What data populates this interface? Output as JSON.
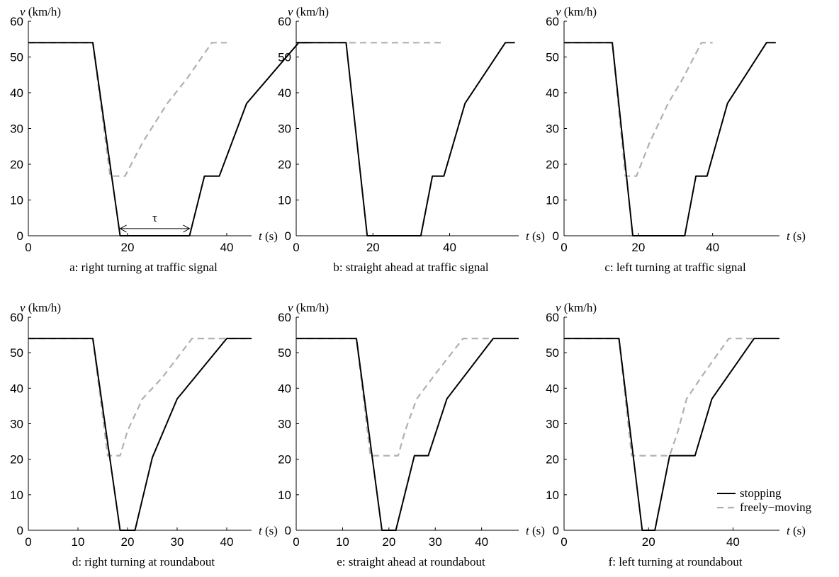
{
  "chart_data": [
    {
      "type": "line",
      "caption": "a: right turning at traffic signal",
      "xlabel_var": "t",
      "xlabel_unit": " (s)",
      "ylabel_var": "v",
      "ylabel_unit": " (km/h)",
      "xlim": [
        0,
        45
      ],
      "ylim": [
        0,
        60
      ],
      "xticks": [
        0,
        20,
        40
      ],
      "yticks": [
        0,
        10,
        20,
        30,
        40,
        50,
        60
      ],
      "series": [
        {
          "name": "stopping",
          "color": "#000000",
          "style": "solid",
          "x": [
            0,
            13,
            18.5,
            32.5,
            35.5,
            38.5,
            44,
            54.5,
            57
          ],
          "y": [
            54,
            54,
            0,
            0,
            16.7,
            16.7,
            37,
            54,
            54
          ]
        },
        {
          "name": "freely-moving",
          "color": "#b0b0b0",
          "style": "dashed",
          "x": [
            0,
            13,
            16.5,
            19.5,
            23,
            28,
            32,
            37,
            40
          ],
          "y": [
            54,
            54,
            16.7,
            16.7,
            26,
            37,
            44,
            54,
            54
          ]
        }
      ],
      "annotation": {
        "label": "τ",
        "x_start": 18.5,
        "x_end": 32.5,
        "y": 2
      }
    },
    {
      "type": "line",
      "caption": "b: straight ahead at traffic signal",
      "xlabel_var": "t",
      "xlabel_unit": " (s)",
      "ylabel_var": "v",
      "ylabel_unit": " (km/h)",
      "xlim": [
        0,
        58
      ],
      "ylim": [
        0,
        60
      ],
      "xticks": [
        0,
        20,
        40
      ],
      "yticks": [
        0,
        10,
        20,
        30,
        40,
        50,
        60
      ],
      "series": [
        {
          "name": "stopping",
          "color": "#000000",
          "style": "solid",
          "x": [
            0,
            13,
            18.5,
            32.5,
            35.5,
            38.5,
            44,
            54.5,
            57
          ],
          "y": [
            54,
            54,
            0,
            0,
            16.7,
            16.7,
            37,
            54,
            54
          ]
        },
        {
          "name": "freely-moving",
          "color": "#b0b0b0",
          "style": "dashed",
          "x": [
            0,
            38
          ],
          "y": [
            54,
            54
          ]
        }
      ]
    },
    {
      "type": "line",
      "caption": "c: left turning at traffic signal",
      "xlabel_var": "t",
      "xlabel_unit": " (s)",
      "ylabel_var": "v",
      "ylabel_unit": " (km/h)",
      "xlim": [
        0,
        58
      ],
      "ylim": [
        0,
        60
      ],
      "xticks": [
        0,
        20,
        40
      ],
      "yticks": [
        0,
        10,
        20,
        30,
        40,
        50,
        60
      ],
      "series": [
        {
          "name": "stopping",
          "color": "#000000",
          "style": "solid",
          "x": [
            0,
            13,
            18.5,
            32.5,
            35.5,
            38.5,
            44,
            54.5,
            57
          ],
          "y": [
            54,
            54,
            0,
            0,
            16.7,
            16.7,
            37,
            54,
            54
          ]
        },
        {
          "name": "freely-moving",
          "color": "#b0b0b0",
          "style": "dashed",
          "x": [
            0,
            13,
            16.5,
            19.5,
            23,
            28,
            32,
            37,
            40
          ],
          "y": [
            54,
            54,
            16.7,
            16.7,
            26,
            37,
            44,
            54,
            54
          ]
        }
      ]
    },
    {
      "type": "line",
      "caption": "d: right turning at roundabout",
      "xlabel_var": "t",
      "xlabel_unit": " (s)",
      "ylabel_var": "v",
      "ylabel_unit": " (km/h)",
      "xlim": [
        0,
        45
      ],
      "ylim": [
        0,
        60
      ],
      "xticks": [
        0,
        10,
        20,
        30,
        40
      ],
      "yticks": [
        0,
        10,
        20,
        30,
        40,
        50,
        60
      ],
      "series": [
        {
          "name": "stopping",
          "color": "#000000",
          "style": "solid",
          "x": [
            0,
            13,
            18.5,
            21.5,
            25,
            30,
            40,
            45
          ],
          "y": [
            54,
            54,
            0,
            0,
            20.5,
            37,
            54,
            54
          ]
        },
        {
          "name": "freely-moving",
          "color": "#b0b0b0",
          "style": "dashed",
          "x": [
            0,
            13,
            16,
            18.5,
            20,
            23,
            27,
            33,
            45
          ],
          "y": [
            54,
            54,
            21,
            21,
            28,
            37,
            43,
            54,
            54
          ]
        }
      ]
    },
    {
      "type": "line",
      "caption": "e: straight ahead at roundabout",
      "xlabel_var": "t",
      "xlabel_unit": " (s)",
      "ylabel_var": "v",
      "ylabel_unit": " (km/h)",
      "xlim": [
        0,
        48
      ],
      "ylim": [
        0,
        60
      ],
      "xticks": [
        0,
        10,
        20,
        30,
        40
      ],
      "yticks": [
        0,
        10,
        20,
        30,
        40,
        50,
        60
      ],
      "series": [
        {
          "name": "stopping",
          "color": "#000000",
          "style": "solid",
          "x": [
            0,
            13,
            18.5,
            21.5,
            25.5,
            28.5,
            32.5,
            42.5,
            48
          ],
          "y": [
            54,
            54,
            0,
            0,
            21,
            21,
            37,
            54,
            54
          ]
        },
        {
          "name": "freely-moving",
          "color": "#b0b0b0",
          "style": "dashed",
          "x": [
            0,
            13,
            16,
            22,
            23.5,
            26,
            30,
            36,
            42
          ],
          "y": [
            54,
            54,
            21,
            21,
            28,
            37,
            44,
            54,
            54
          ]
        }
      ]
    },
    {
      "type": "line",
      "caption": "f: left turning at roundabout",
      "xlabel_var": "t",
      "xlabel_unit": " (s)",
      "ylabel_var": "v",
      "ylabel_unit": " (km/h)",
      "xlim": [
        0,
        51
      ],
      "ylim": [
        0,
        60
      ],
      "xticks": [
        0,
        20,
        40
      ],
      "yticks": [
        0,
        10,
        20,
        30,
        40,
        50,
        60
      ],
      "series": [
        {
          "name": "stopping",
          "color": "#000000",
          "style": "solid",
          "x": [
            0,
            13,
            18.5,
            21.5,
            25,
            31,
            35,
            45,
            51
          ],
          "y": [
            54,
            54,
            0,
            0,
            21,
            21,
            37,
            54,
            54
          ]
        },
        {
          "name": "freely-moving",
          "color": "#b0b0b0",
          "style": "dashed",
          "x": [
            0,
            13,
            16,
            25,
            27,
            29,
            33,
            39,
            45
          ],
          "y": [
            54,
            54,
            21,
            21,
            28,
            37,
            44,
            54,
            54
          ]
        }
      ],
      "legend": {
        "position": "bottom-right",
        "entries": [
          "stopping",
          "freely−moving"
        ]
      }
    }
  ]
}
